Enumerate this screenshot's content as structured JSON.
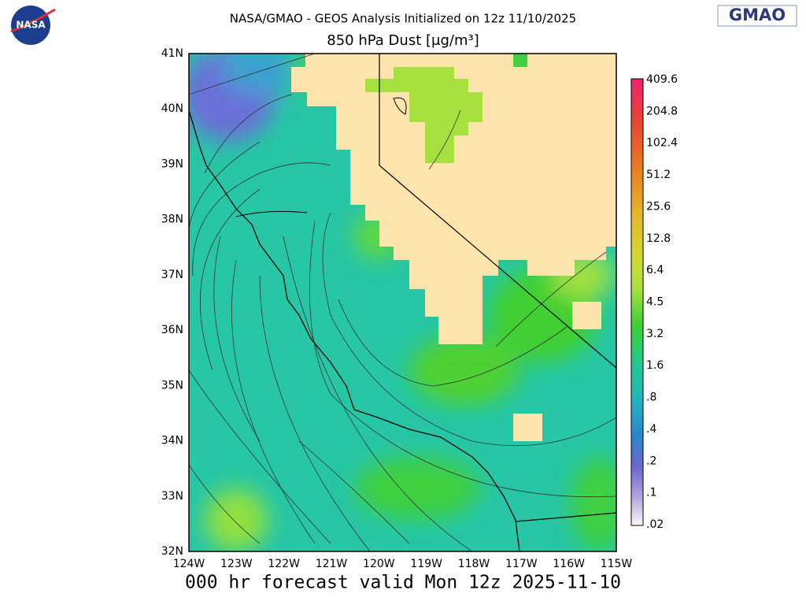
{
  "header": {
    "title": "NASA/GMAO - GEOS Analysis Initialized on 12z 11/10/2025",
    "subtitle": "850 hPa Dust [μg/m³]",
    "left_logo": "NASA",
    "right_logo": "GMAO"
  },
  "map": {
    "lon_labels": [
      "124W",
      "123W",
      "122W",
      "121W",
      "120W",
      "119W",
      "118W",
      "117W",
      "116W",
      "115W"
    ],
    "lat_labels": [
      "41N",
      "40N",
      "39N",
      "38N",
      "37N",
      "36N",
      "35N",
      "34N",
      "33N",
      "32N"
    ]
  },
  "colorbar": {
    "labels": [
      "409.6",
      "204.8",
      "102.4",
      "51.2",
      "25.6",
      "12.8",
      "6.4",
      "4.5",
      "3.2",
      "1.6",
      ".8",
      ".4",
      ".2",
      ".1",
      ".02"
    ]
  },
  "footer": "000 hr forecast valid Mon 12z 2025-11-10"
}
